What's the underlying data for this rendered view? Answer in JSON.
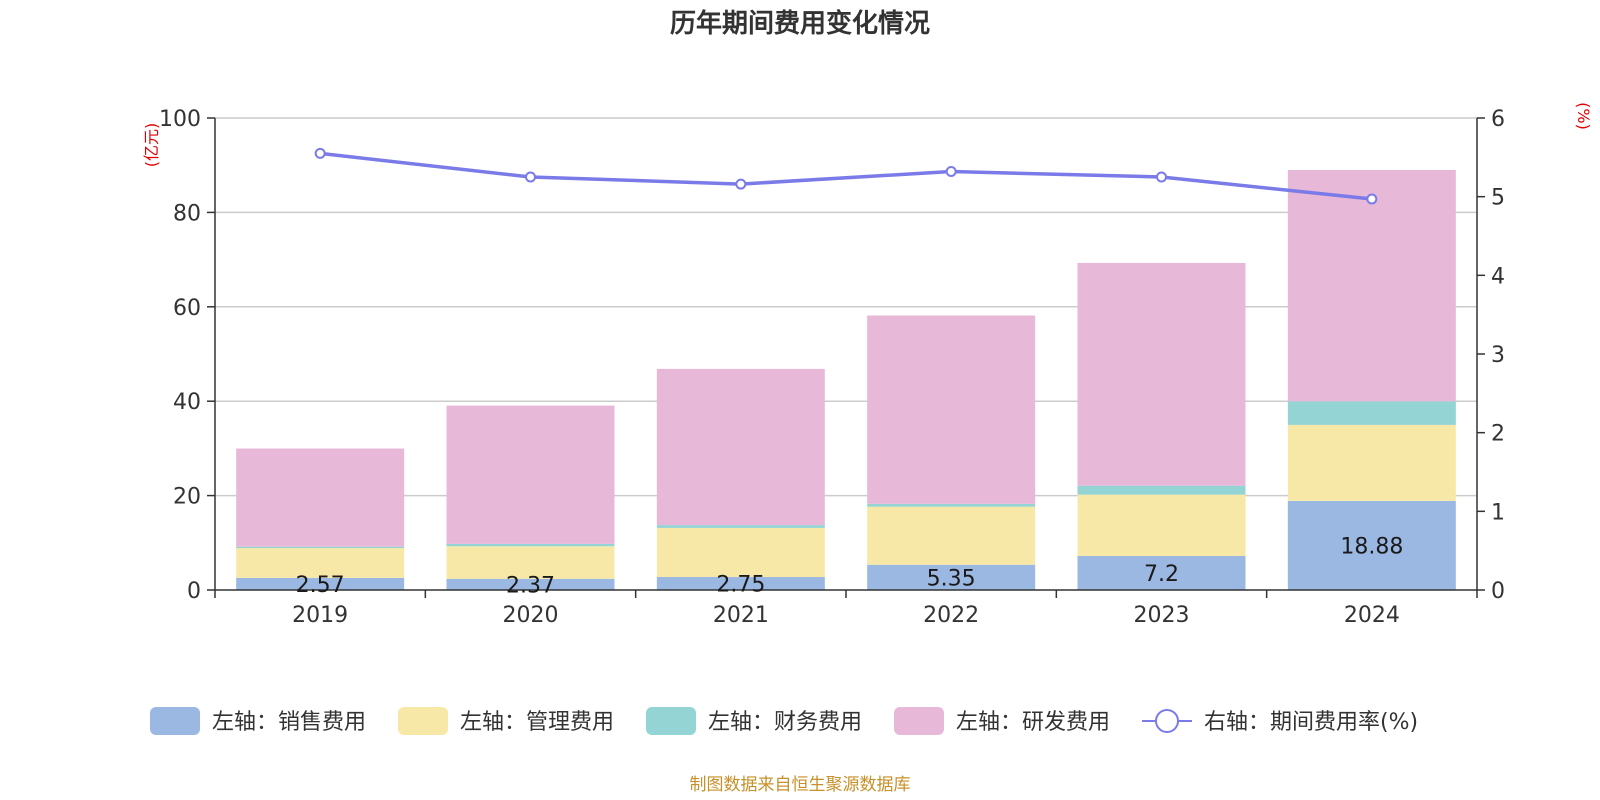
{
  "chart_data": {
    "type": "bar",
    "stacked": true,
    "title": "历年期间费用变化情况",
    "categories": [
      "2019",
      "2020",
      "2021",
      "2022",
      "2023",
      "2024"
    ],
    "left_axis": {
      "unit": "(亿元)",
      "range": [
        0,
        100
      ],
      "ticks": [
        "0",
        "20",
        "40",
        "60",
        "80",
        "100"
      ]
    },
    "right_axis": {
      "unit": "(%)",
      "range": [
        0,
        6
      ],
      "ticks": [
        "0",
        "1",
        "2",
        "3",
        "4",
        "5",
        "6"
      ]
    },
    "grid": true,
    "legend_position": "bottom",
    "series": [
      {
        "name": "左轴：销售费用",
        "axis": "left",
        "type": "bar",
        "color": "#9bb8e3",
        "values": [
          2.57,
          2.37,
          2.75,
          5.35,
          7.2,
          18.88
        ],
        "labels": [
          "2.57",
          "2.37",
          "2.75",
          "5.35",
          "7.2",
          "18.88"
        ]
      },
      {
        "name": "左轴：管理费用",
        "axis": "left",
        "type": "bar",
        "color": "#f8e8a8",
        "values": [
          6.3,
          6.9,
          10.4,
          12.3,
          13.0,
          16.1
        ]
      },
      {
        "name": "左轴：财务费用",
        "axis": "left",
        "type": "bar",
        "color": "#95d4d4",
        "values": [
          0.3,
          0.5,
          0.6,
          0.6,
          1.9,
          5.0
        ]
      },
      {
        "name": "左轴：研发费用",
        "axis": "left",
        "type": "bar",
        "color": "#e7b8d8",
        "values": [
          20.8,
          29.3,
          33.1,
          39.9,
          47.2,
          49.0
        ]
      },
      {
        "name": "右轴：期间费用率(%)",
        "axis": "right",
        "type": "line",
        "color": "#7a7ae8",
        "values": [
          5.55,
          5.25,
          5.16,
          5.32,
          5.25,
          4.97
        ]
      }
    ]
  },
  "footer": {
    "source": "制图数据来自恒生聚源数据库"
  }
}
